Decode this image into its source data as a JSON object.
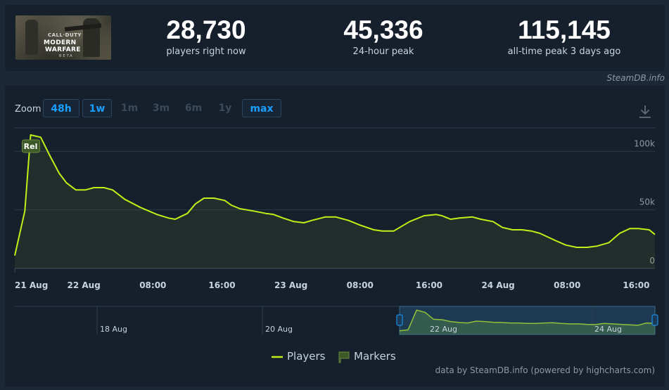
{
  "stats": [
    {
      "value": "28,730",
      "label": "players right now"
    },
    {
      "value": "45,336",
      "label": "24-hour peak"
    },
    {
      "value": "115,145",
      "label": "all-time peak 3 days ago"
    }
  ],
  "game_image": {
    "logo_top": "CALL·DUTY",
    "logo_mid": "MODERN",
    "logo_bottom": "WARFARE",
    "logo_tag": "BETA"
  },
  "credit_top": "SteamDB.info",
  "zoom": {
    "label": "Zoom",
    "buttons": [
      {
        "label": "48h",
        "active": true
      },
      {
        "label": "1w",
        "active": true
      },
      {
        "label": "1m",
        "active": false
      },
      {
        "label": "3m",
        "active": false
      },
      {
        "label": "6m",
        "active": false
      },
      {
        "label": "1y",
        "active": false
      },
      {
        "label": "max",
        "active": true
      }
    ]
  },
  "icons": {
    "download": "download-icon",
    "marker": "flag-icon"
  },
  "colors": {
    "line": "#bef018",
    "accent": "#1a9fff",
    "marker": "#3c5a28"
  },
  "chart_data": {
    "type": "line",
    "title": "",
    "xlabel": "",
    "ylabel": "",
    "x_unit": "hours since 21 Aug 00:00",
    "xlim": [
      0,
      89
    ],
    "ylim": [
      0,
      120000
    ],
    "y_ticks": [
      {
        "value": 0,
        "label": "0"
      },
      {
        "value": 50000,
        "label": "50k"
      },
      {
        "value": 100000,
        "label": "100k"
      }
    ],
    "x_ticks": [
      {
        "value": 0,
        "label": "21 Aug"
      },
      {
        "value": 9.6,
        "label": "22 Aug"
      },
      {
        "value": 19.2,
        "label": "08:00"
      },
      {
        "value": 28.8,
        "label": "16:00"
      },
      {
        "value": 38.4,
        "label": "23 Aug"
      },
      {
        "value": 48,
        "label": "08:00"
      },
      {
        "value": 57.6,
        "label": "16:00"
      },
      {
        "value": 67.2,
        "label": "24 Aug"
      },
      {
        "value": 76.8,
        "label": "08:00"
      },
      {
        "value": 86.4,
        "label": "16:00"
      }
    ],
    "grid": true,
    "legend_position": "bottom-center",
    "series": [
      {
        "name": "Players",
        "x": [
          0,
          1.4,
          2.2,
          3.6,
          4.9,
          6.2,
          7.2,
          8.5,
          9.8,
          11.0,
          12.4,
          13.6,
          15.3,
          17.5,
          19.8,
          21.4,
          22.3,
          24.0,
          25.1,
          26.3,
          27.7,
          29.2,
          30.1,
          31.3,
          33.2,
          34.9,
          36.0,
          37.3,
          38.8,
          40.2,
          41.3,
          43.2,
          44.6,
          46.4,
          48.0,
          49.9,
          51.1,
          52.7,
          54.9,
          56.9,
          58.6,
          59.4,
          60.6,
          61.8,
          63.6,
          64.8,
          66.5,
          67.8,
          69.2,
          70.5,
          71.8,
          73.0,
          75.1,
          76.6,
          78.1,
          79.6,
          80.9,
          82.6,
          84.1,
          85.5,
          86.7,
          88.2,
          89.0
        ],
        "y": [
          11000,
          49000,
          114000,
          112000,
          96000,
          81000,
          73000,
          67000,
          67000,
          69000,
          69000,
          67000,
          59000,
          52000,
          46000,
          43000,
          42000,
          47000,
          55000,
          60000,
          60000,
          58000,
          54000,
          51000,
          49000,
          47000,
          46000,
          43000,
          40000,
          39000,
          41000,
          44000,
          44000,
          41000,
          37000,
          33000,
          32000,
          32000,
          40000,
          45000,
          46000,
          45000,
          42000,
          43000,
          44000,
          42000,
          40000,
          35000,
          33000,
          33000,
          32000,
          30000,
          24000,
          20000,
          18000,
          18000,
          19000,
          22000,
          30000,
          34000,
          34000,
          33000,
          29000
        ]
      }
    ],
    "markers": [
      {
        "label": "Rel",
        "x": 2.2
      }
    ],
    "navigator": {
      "labels": [
        "18 Aug",
        "20 Aug",
        "22 Aug",
        "24 Aug"
      ],
      "values": [
        10000,
        14000,
        100000,
        90000,
        60000,
        58000,
        50000,
        46000,
        44000,
        52000,
        50000,
        47000,
        46000,
        44000,
        44000,
        42000,
        42000,
        44000,
        45000,
        42000,
        40000,
        40000,
        38000,
        37000,
        42000,
        40000,
        38000,
        36000,
        34000,
        44000,
        42000
      ]
    },
    "legend": [
      {
        "label": "Players",
        "symbol": "line"
      },
      {
        "label": "Markers",
        "symbol": "flag"
      }
    ]
  },
  "credit_bottom": "data by SteamDB.info (powered by highcharts.com)"
}
